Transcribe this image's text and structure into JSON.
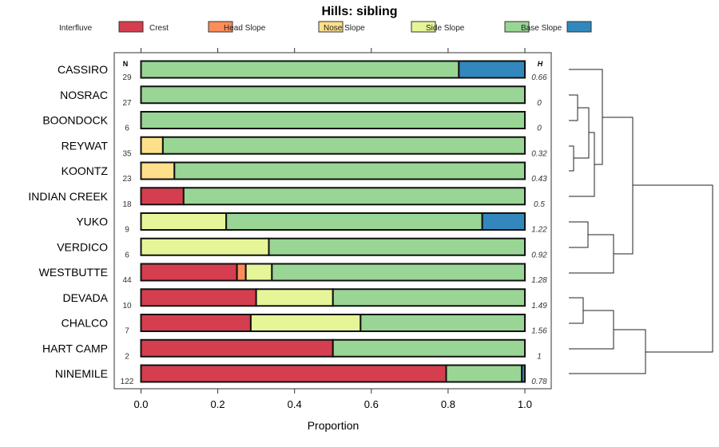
{
  "chart_data": {
    "type": "bar",
    "stacked": true,
    "orientation": "horizontal",
    "title": "Hills: sibling",
    "xlabel": "Proportion",
    "ylabel": "",
    "xlim": [
      0,
      1
    ],
    "xticks": [
      "0.0",
      "0.2",
      "0.4",
      "0.6",
      "0.8",
      "1.0"
    ],
    "n_header": "N",
    "h_header": "H",
    "legend_position": "top",
    "legend": [
      {
        "name": "Interfluve",
        "color": "#D53E4F"
      },
      {
        "name": "Crest",
        "color": "#FC8D59"
      },
      {
        "name": "Head Slope",
        "color": "#FEE08B"
      },
      {
        "name": "Nose Slope",
        "color": "#E6F598"
      },
      {
        "name": "Side Slope",
        "color": "#99D594"
      },
      {
        "name": "Base Slope",
        "color": "#3288BD"
      }
    ],
    "categories": [
      "CASSIRO",
      "NOSRAC",
      "BOONDOCK",
      "REYWAT",
      "KOONTZ",
      "INDIAN CREEK",
      "YUKO",
      "VERDICO",
      "WESTBUTTE",
      "DEVADA",
      "CHALCO",
      "HART CAMP",
      "NINEMILE"
    ],
    "n": [
      "29",
      "27",
      "6",
      "35",
      "23",
      "18",
      "9",
      "6",
      "44",
      "10",
      "7",
      "2",
      "122"
    ],
    "h": [
      "0.66",
      "0",
      "0",
      "0.32",
      "0.43",
      "0.5",
      "1.22",
      "0.92",
      "1.28",
      "1.49",
      "1.56",
      "1",
      "0.78"
    ],
    "series": [
      {
        "name": "Interfluve",
        "values": [
          0,
          0,
          0,
          0,
          0,
          0.111,
          0,
          0,
          0.25,
          0.3,
          0.286,
          0.5,
          0.795
        ]
      },
      {
        "name": "Crest",
        "values": [
          0,
          0,
          0,
          0,
          0,
          0,
          0,
          0,
          0.023,
          0,
          0,
          0,
          0
        ]
      },
      {
        "name": "Head Slope",
        "values": [
          0,
          0,
          0,
          0.057,
          0.087,
          0,
          0,
          0,
          0,
          0,
          0,
          0,
          0
        ]
      },
      {
        "name": "Nose Slope",
        "values": [
          0,
          0,
          0,
          0,
          0,
          0,
          0.222,
          0.333,
          0.068,
          0.2,
          0.286,
          0,
          0
        ]
      },
      {
        "name": "Side Slope",
        "values": [
          0.828,
          1,
          1,
          0.943,
          0.913,
          0.889,
          0.667,
          0.667,
          0.659,
          0.5,
          0.428,
          0.5,
          0.197
        ]
      },
      {
        "name": "Base Slope",
        "values": [
          0.172,
          0,
          0,
          0,
          0,
          0,
          0.111,
          0,
          0,
          0,
          0,
          0,
          0.008
        ]
      }
    ]
  }
}
